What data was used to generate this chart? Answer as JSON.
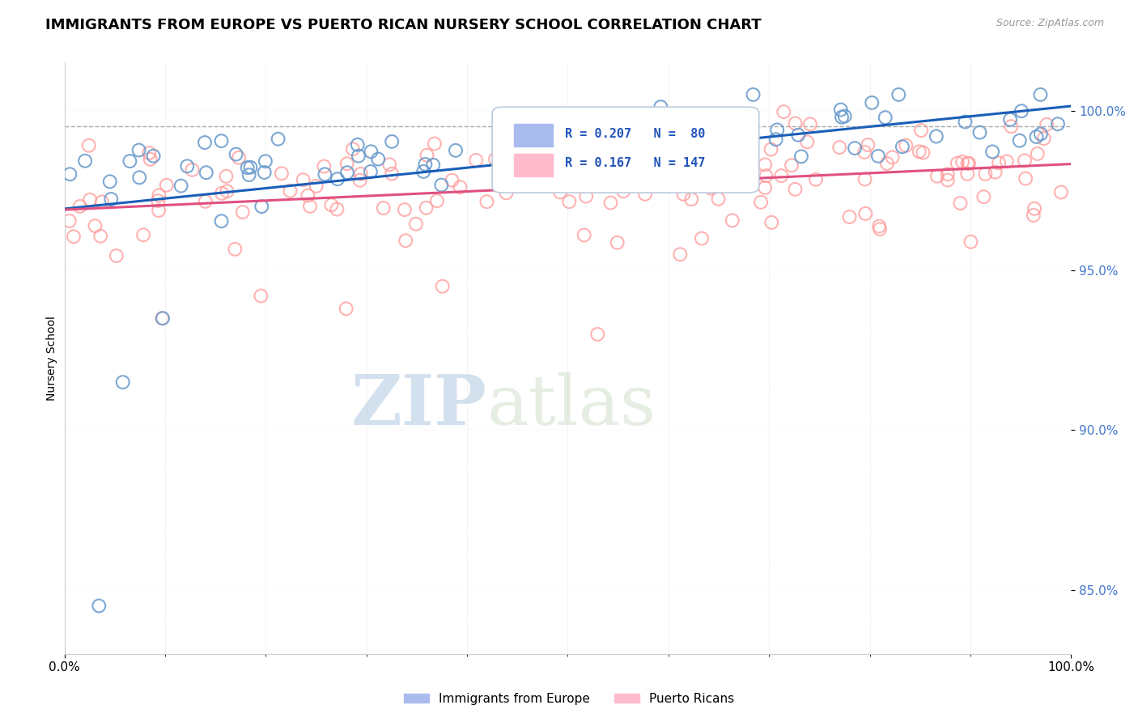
{
  "title": "IMMIGRANTS FROM EUROPE VS PUERTO RICAN NURSERY SCHOOL CORRELATION CHART",
  "source": "Source: ZipAtlas.com",
  "ylabel": "Nursery School",
  "xlim": [
    0.0,
    100.0
  ],
  "ylim": [
    83.0,
    101.5
  ],
  "yticks": [
    85.0,
    90.0,
    95.0,
    100.0
  ],
  "ytick_labels": [
    "85.0%",
    "90.0%",
    "95.0%",
    "100.0%"
  ],
  "xtick_labels": [
    "0.0%",
    "100.0%"
  ],
  "legend_entries": [
    "Immigrants from Europe",
    "Puerto Ricans"
  ],
  "R_blue": 0.207,
  "N_blue": 80,
  "R_pink": 0.167,
  "N_pink": 147,
  "blue_color": "#6699CC",
  "pink_color": "#FF9999",
  "trend_blue_color": "#1a5eb8",
  "trend_pink_color": "#e05080",
  "watermark_zip": "ZIP",
  "watermark_atlas": "atlas",
  "watermark_color_zip": "#b0c8e0",
  "watermark_color_atlas": "#c8d8c0",
  "dashed_line_y": 99.5,
  "dashed_line_color": "#aaaaaa"
}
